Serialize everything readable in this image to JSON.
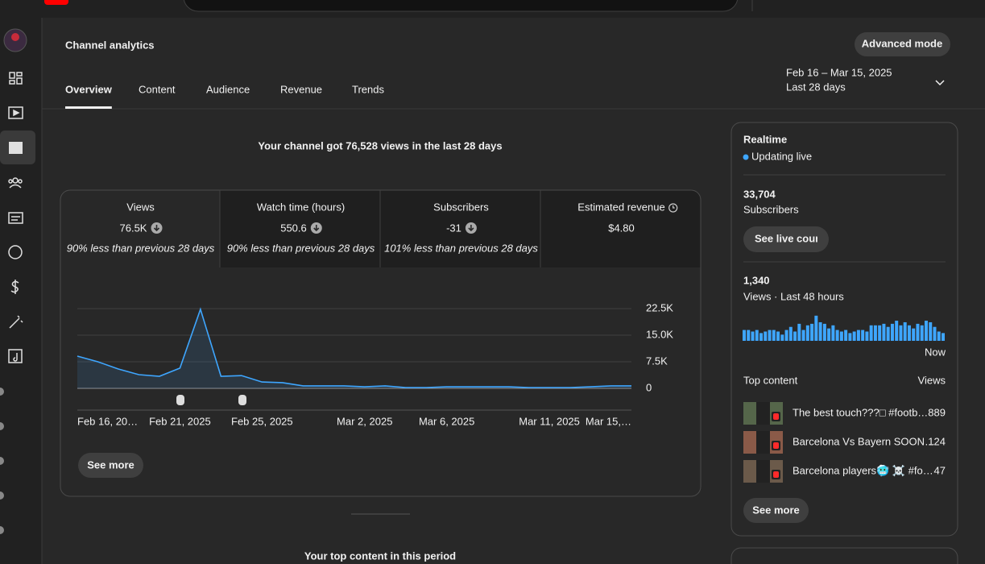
{
  "header": {
    "title": "Channel analytics",
    "advanced_button": "Advanced mode",
    "tabs": [
      "Overview",
      "Content",
      "Audience",
      "Revenue",
      "Trends"
    ],
    "date_range": "Feb 16 – Mar 15, 2025",
    "period": "Last 28 days"
  },
  "headline": "Your channel got 76,528 views in the last 28 days",
  "metrics": [
    {
      "label": "Views",
      "value": "76.5K",
      "note": "90% less than previous 28 days"
    },
    {
      "label": "Watch time (hours)",
      "value": "550.6",
      "note": "90% less than previous 28 days"
    },
    {
      "label": "Subscribers",
      "value": "-31",
      "note": "101% less than previous 28 days"
    },
    {
      "label": "Estimated revenue",
      "value": "$4.80"
    }
  ],
  "main_chart": {
    "type": "line",
    "color": "#3ea6ff",
    "grid": true,
    "categories": [
      "Feb 16, 20…",
      null,
      null,
      null,
      null,
      "Feb 21, 2025",
      null,
      null,
      null,
      "Feb 25, 2025",
      null,
      null,
      null,
      null,
      "Mar 2, 2025",
      null,
      null,
      null,
      "Mar 6, 2025",
      null,
      null,
      null,
      null,
      "Mar 11, 2025",
      null,
      null,
      null,
      "Mar 15,…"
    ],
    "values": [
      9100,
      7500,
      5450,
      3860,
      3400,
      5700,
      22300,
      3400,
      3600,
      1800,
      1600,
      700,
      700,
      700,
      450,
      700,
      230,
      230,
      450,
      450,
      450,
      450,
      230,
      230,
      230,
      450,
      700,
      700
    ],
    "ylim": [
      0,
      22500
    ],
    "yticks": [
      0,
      {
        "value": 7500,
        "label": "7.5K"
      },
      {
        "value": 15000,
        "label": "15.0K"
      },
      {
        "value": 22500,
        "label": "22.5K"
      }
    ]
  },
  "see_more": "See more",
  "section_title": "Your top content in this period",
  "realtime": {
    "title": "Realtime",
    "status": "Updating live",
    "subscribers": "33,704",
    "subscribers_label": "Subscribers",
    "live_button": "See live count",
    "views": "1,340",
    "views_label": "Views · Last 48 hours",
    "bars": [
      28,
      28,
      24,
      28,
      20,
      24,
      28,
      28,
      24,
      16,
      28,
      36,
      24,
      44,
      28,
      40,
      44,
      65,
      48,
      44,
      32,
      40,
      28,
      24,
      28,
      20,
      24,
      28,
      28,
      24,
      40,
      40,
      40,
      44,
      36,
      44,
      52,
      40,
      48,
      40,
      32,
      44,
      40,
      52,
      48,
      36,
      24,
      20
    ],
    "now_label": "Now",
    "top_content_label": "Top content",
    "views_column": "Views",
    "top_content": [
      {
        "title": "The best touch???□ #footb…",
        "views": 889
      },
      {
        "title": "Barcelona Vs Bayern SOON…",
        "views": 124
      },
      {
        "title": "Barcelona players🥶 ☠️ #fo…",
        "views": 47
      }
    ],
    "see_more": "See more"
  }
}
